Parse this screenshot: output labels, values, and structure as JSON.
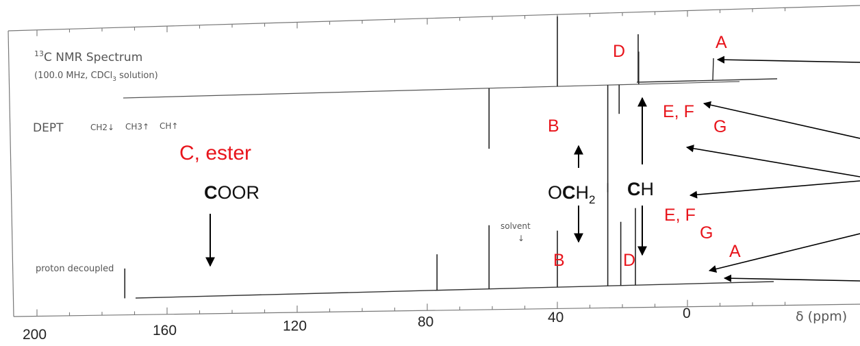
{
  "chart_data": {
    "type": "line",
    "x_axis": {
      "label": "δ (ppm)",
      "range": [
        0,
        200
      ],
      "reversed": true,
      "ticks": [
        200,
        160,
        120,
        80,
        40,
        0
      ]
    },
    "panels": [
      {
        "title": "13C NMR Spectrum",
        "title_prefix": "13",
        "title_rest": "C NMR Spectrum",
        "subtitle": "(100.0 MHz, CDCl3 solution)",
        "subtitle_parts": [
          "(100.0 MHz, CDCl",
          "3",
          " solution)"
        ]
      },
      {
        "label": "DEPT",
        "legend": [
          "CH2↓",
          "CH3↑",
          "CH↑"
        ],
        "peaks": [
          {
            "ppm": 61,
            "height": 0.52,
            "direction": "down"
          },
          {
            "ppm": 40,
            "height": 0.6,
            "direction": "up"
          },
          {
            "ppm": 24.5,
            "height": 0.92,
            "direction": "down"
          },
          {
            "ppm": 21,
            "height": 0.25,
            "direction": "down"
          },
          {
            "ppm": 15,
            "height": 0.28,
            "direction": "up"
          }
        ]
      },
      {
        "label": "proton decoupled",
        "peaks": [
          {
            "ppm": 173,
            "height": 0.29
          },
          {
            "ppm": 77,
            "height": 0.35
          },
          {
            "ppm": 61,
            "height": 0.62
          },
          {
            "ppm": 40,
            "height": 0.55
          },
          {
            "ppm": 24.5,
            "height": 1.0
          },
          {
            "ppm": 20.5,
            "height": 0.62
          },
          {
            "ppm": 16,
            "height": 0.75
          }
        ],
        "solvent_label": "solvent"
      }
    ],
    "annotations": {
      "peak_labels": [
        "A",
        "D",
        "B",
        "E, F",
        "G",
        "B",
        "D",
        "E, F",
        "G",
        "A"
      ],
      "group_labels": {
        "ester_heading": "C, ester",
        "coor": {
          "bold": "C",
          "rest": "OOR"
        },
        "och2": {
          "pre": "O",
          "bold": "C",
          "mid": "H",
          "sub": "2"
        },
        "ch": {
          "bold": "C",
          "rest": "H"
        }
      }
    }
  }
}
